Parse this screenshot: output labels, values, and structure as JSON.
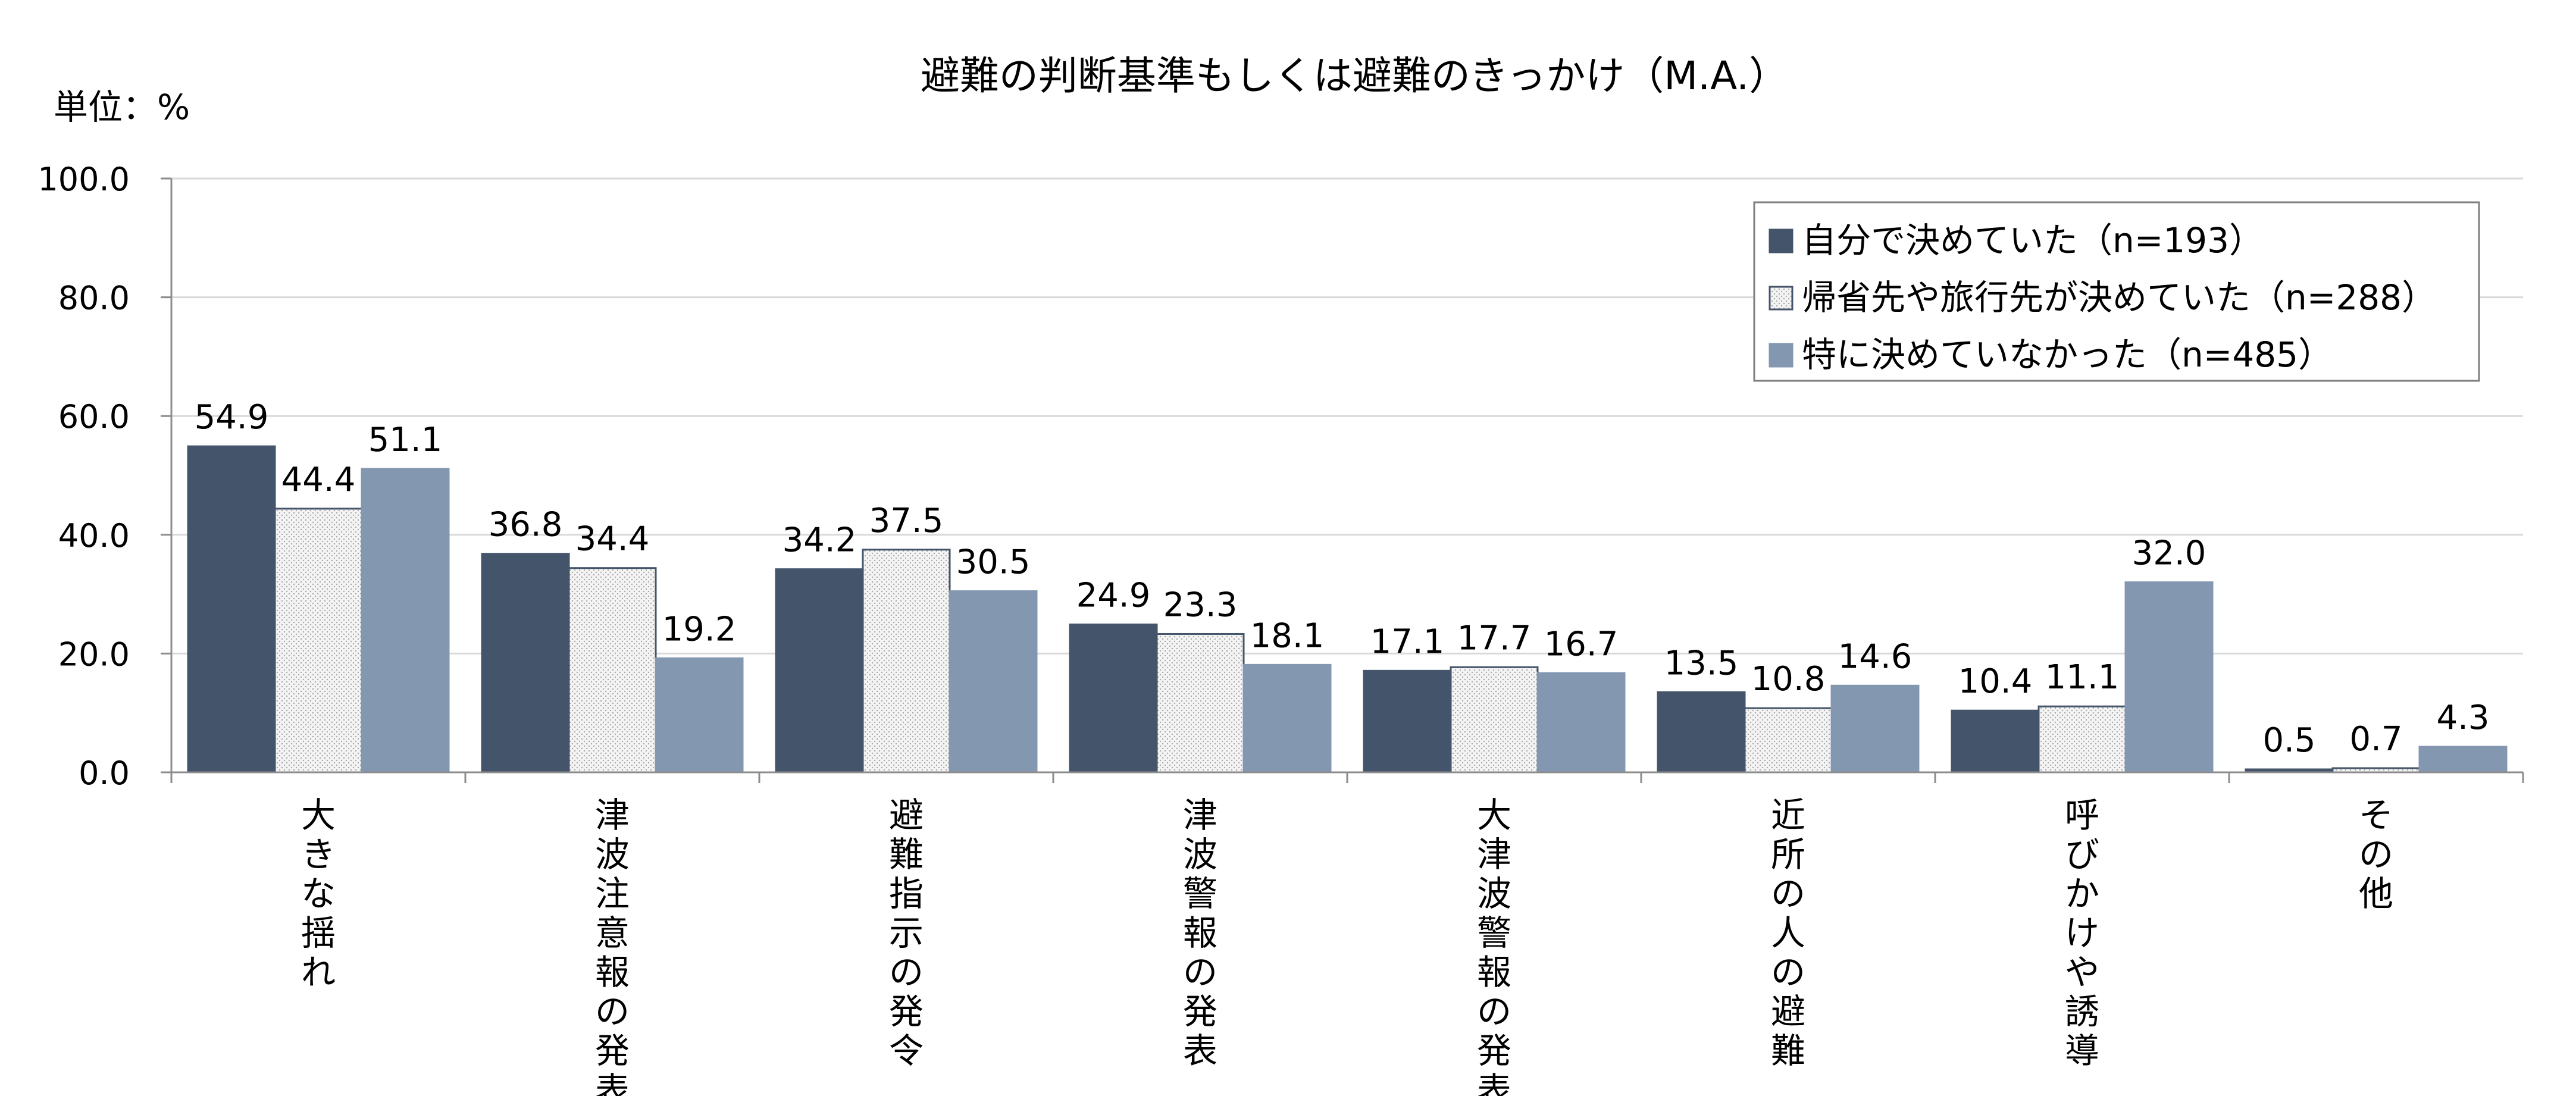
{
  "chart_data": {
    "type": "bar",
    "title": "避難の判断基準もしくは避難のきっかけ（M.A.）",
    "unit_label": "単位：%",
    "ylim": [
      0,
      100
    ],
    "yticks": [
      "0.0",
      "20.0",
      "40.0",
      "60.0",
      "80.0",
      "100.0"
    ],
    "grid": true,
    "legend_position": "top-right",
    "categories": [
      "大きな揺れ",
      "津波注意報の発表",
      "避難指示の発令",
      "津波警報の発表",
      "大津波警報の発表",
      "近所の人の避難",
      "呼びかけや誘導",
      "その他"
    ],
    "series": [
      {
        "name": "自分で決めていた（n=193）",
        "color": "#44546a",
        "pattern": "solid",
        "values": [
          54.9,
          36.8,
          34.2,
          24.9,
          17.1,
          13.5,
          10.4,
          0.5
        ],
        "labels": [
          "54.9",
          "36.8",
          "34.2",
          "24.9",
          "17.1",
          "13.5",
          "10.4",
          "0.5"
        ]
      },
      {
        "name": "帰省先や旅行先が決めていた（n=288）",
        "color": "#f2f2f2",
        "pattern": "dotted",
        "values": [
          44.4,
          34.4,
          37.5,
          23.3,
          17.7,
          10.8,
          11.1,
          0.7
        ],
        "labels": [
          "44.4",
          "34.4",
          "37.5",
          "23.3",
          "17.7",
          "10.8",
          "11.1",
          "0.7"
        ]
      },
      {
        "name": "特に決めていなかった（n=485）",
        "color": "#8497b0",
        "pattern": "solid",
        "values": [
          51.1,
          19.2,
          30.5,
          18.1,
          16.7,
          14.6,
          32.0,
          4.3
        ],
        "labels": [
          "51.1",
          "19.2",
          "30.5",
          "18.1",
          "16.7",
          "14.6",
          "32.0",
          "4.3"
        ]
      }
    ]
  }
}
